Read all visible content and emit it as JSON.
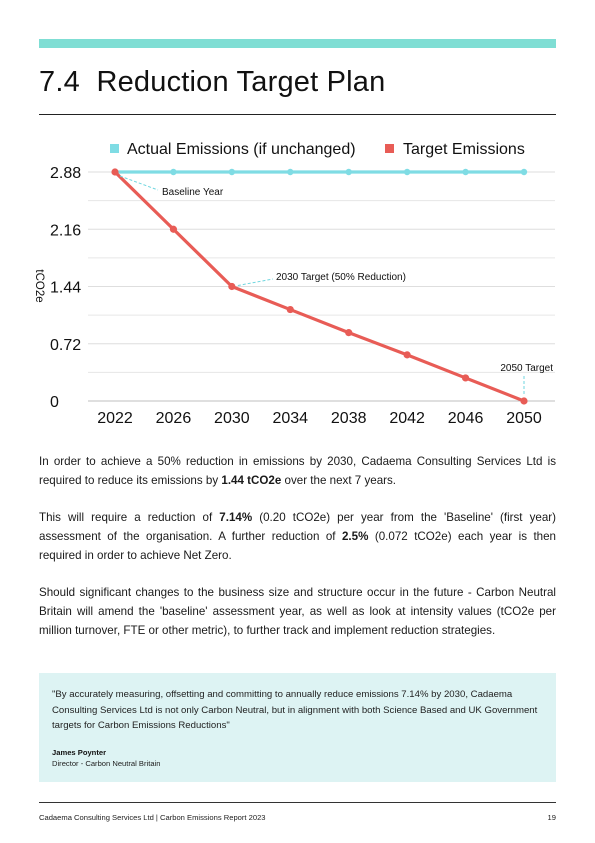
{
  "section": {
    "number": "7.4",
    "title": "Reduction Target Plan"
  },
  "chart_data": {
    "type": "line",
    "ylabel": "tCO2e",
    "ylim": [
      0,
      2.88
    ],
    "yticks": [
      "0",
      "0.72",
      "1.44",
      "2.16",
      "2.88"
    ],
    "x": [
      "2022",
      "2026",
      "2030",
      "2034",
      "2038",
      "2042",
      "2046",
      "2050"
    ],
    "grid": true,
    "legend_position": "top",
    "series": [
      {
        "name": "Actual Emissions (if unchanged)",
        "color": "#7fdce4",
        "values": [
          2.88,
          2.88,
          2.88,
          2.88,
          2.88,
          2.88,
          2.88,
          2.88
        ]
      },
      {
        "name": "Target Emissions",
        "color": "#e85c56",
        "values": [
          2.88,
          2.16,
          1.44,
          1.15,
          0.86,
          0.58,
          0.29,
          0
        ]
      }
    ],
    "annotations": [
      {
        "text": "Baseline Year",
        "x": "2022",
        "y": 2.88
      },
      {
        "text": "2030 Target (50% Reduction)",
        "x": "2030",
        "y": 1.44
      },
      {
        "text": "2050 Target",
        "x": "2050",
        "y": 0
      }
    ]
  },
  "paragraphs": {
    "p1": {
      "a": "In order to achieve a 50% reduction in emissions by 2030, Cadaema Consulting Services Ltd is required to reduce its emissions by ",
      "b": "1.44 tCO2e",
      "c": " over the next 7 years."
    },
    "p2": {
      "a": "This will require a reduction of ",
      "b": "7.14%",
      "c": " (0.20 tCO2e) per year from the 'Baseline' (first year) assessment of the organisation. A further reduction of ",
      "d": "2.5%",
      "e": " (0.072 tCO2e) each year is then required in order to achieve Net Zero."
    },
    "p3": "Should significant changes to the business size and structure occur in the future - Carbon Neutral Britain will amend the 'baseline' assessment year, as well as look at intensity values (tCO2e per million turnover, FTE or other metric), to further track and implement reduction strategies."
  },
  "quote": {
    "text": "\"By accurately measuring, offsetting and committing to annually reduce emissions 7.14% by 2030, Cadaema Consulting Services Ltd is not only Carbon Neutral, but in alignment with both Science Based and UK Government targets for Carbon Emissions Reductions\"",
    "name": "James Poynter",
    "role": "Director - Carbon Neutral Britain"
  },
  "footer": {
    "left": "Cadaema Consulting Services Ltd | Carbon Emissions Report 2023",
    "page": "19"
  },
  "colors": {
    "accent_bar": "#7fded4",
    "quote_bg": "#ddf3f3"
  }
}
